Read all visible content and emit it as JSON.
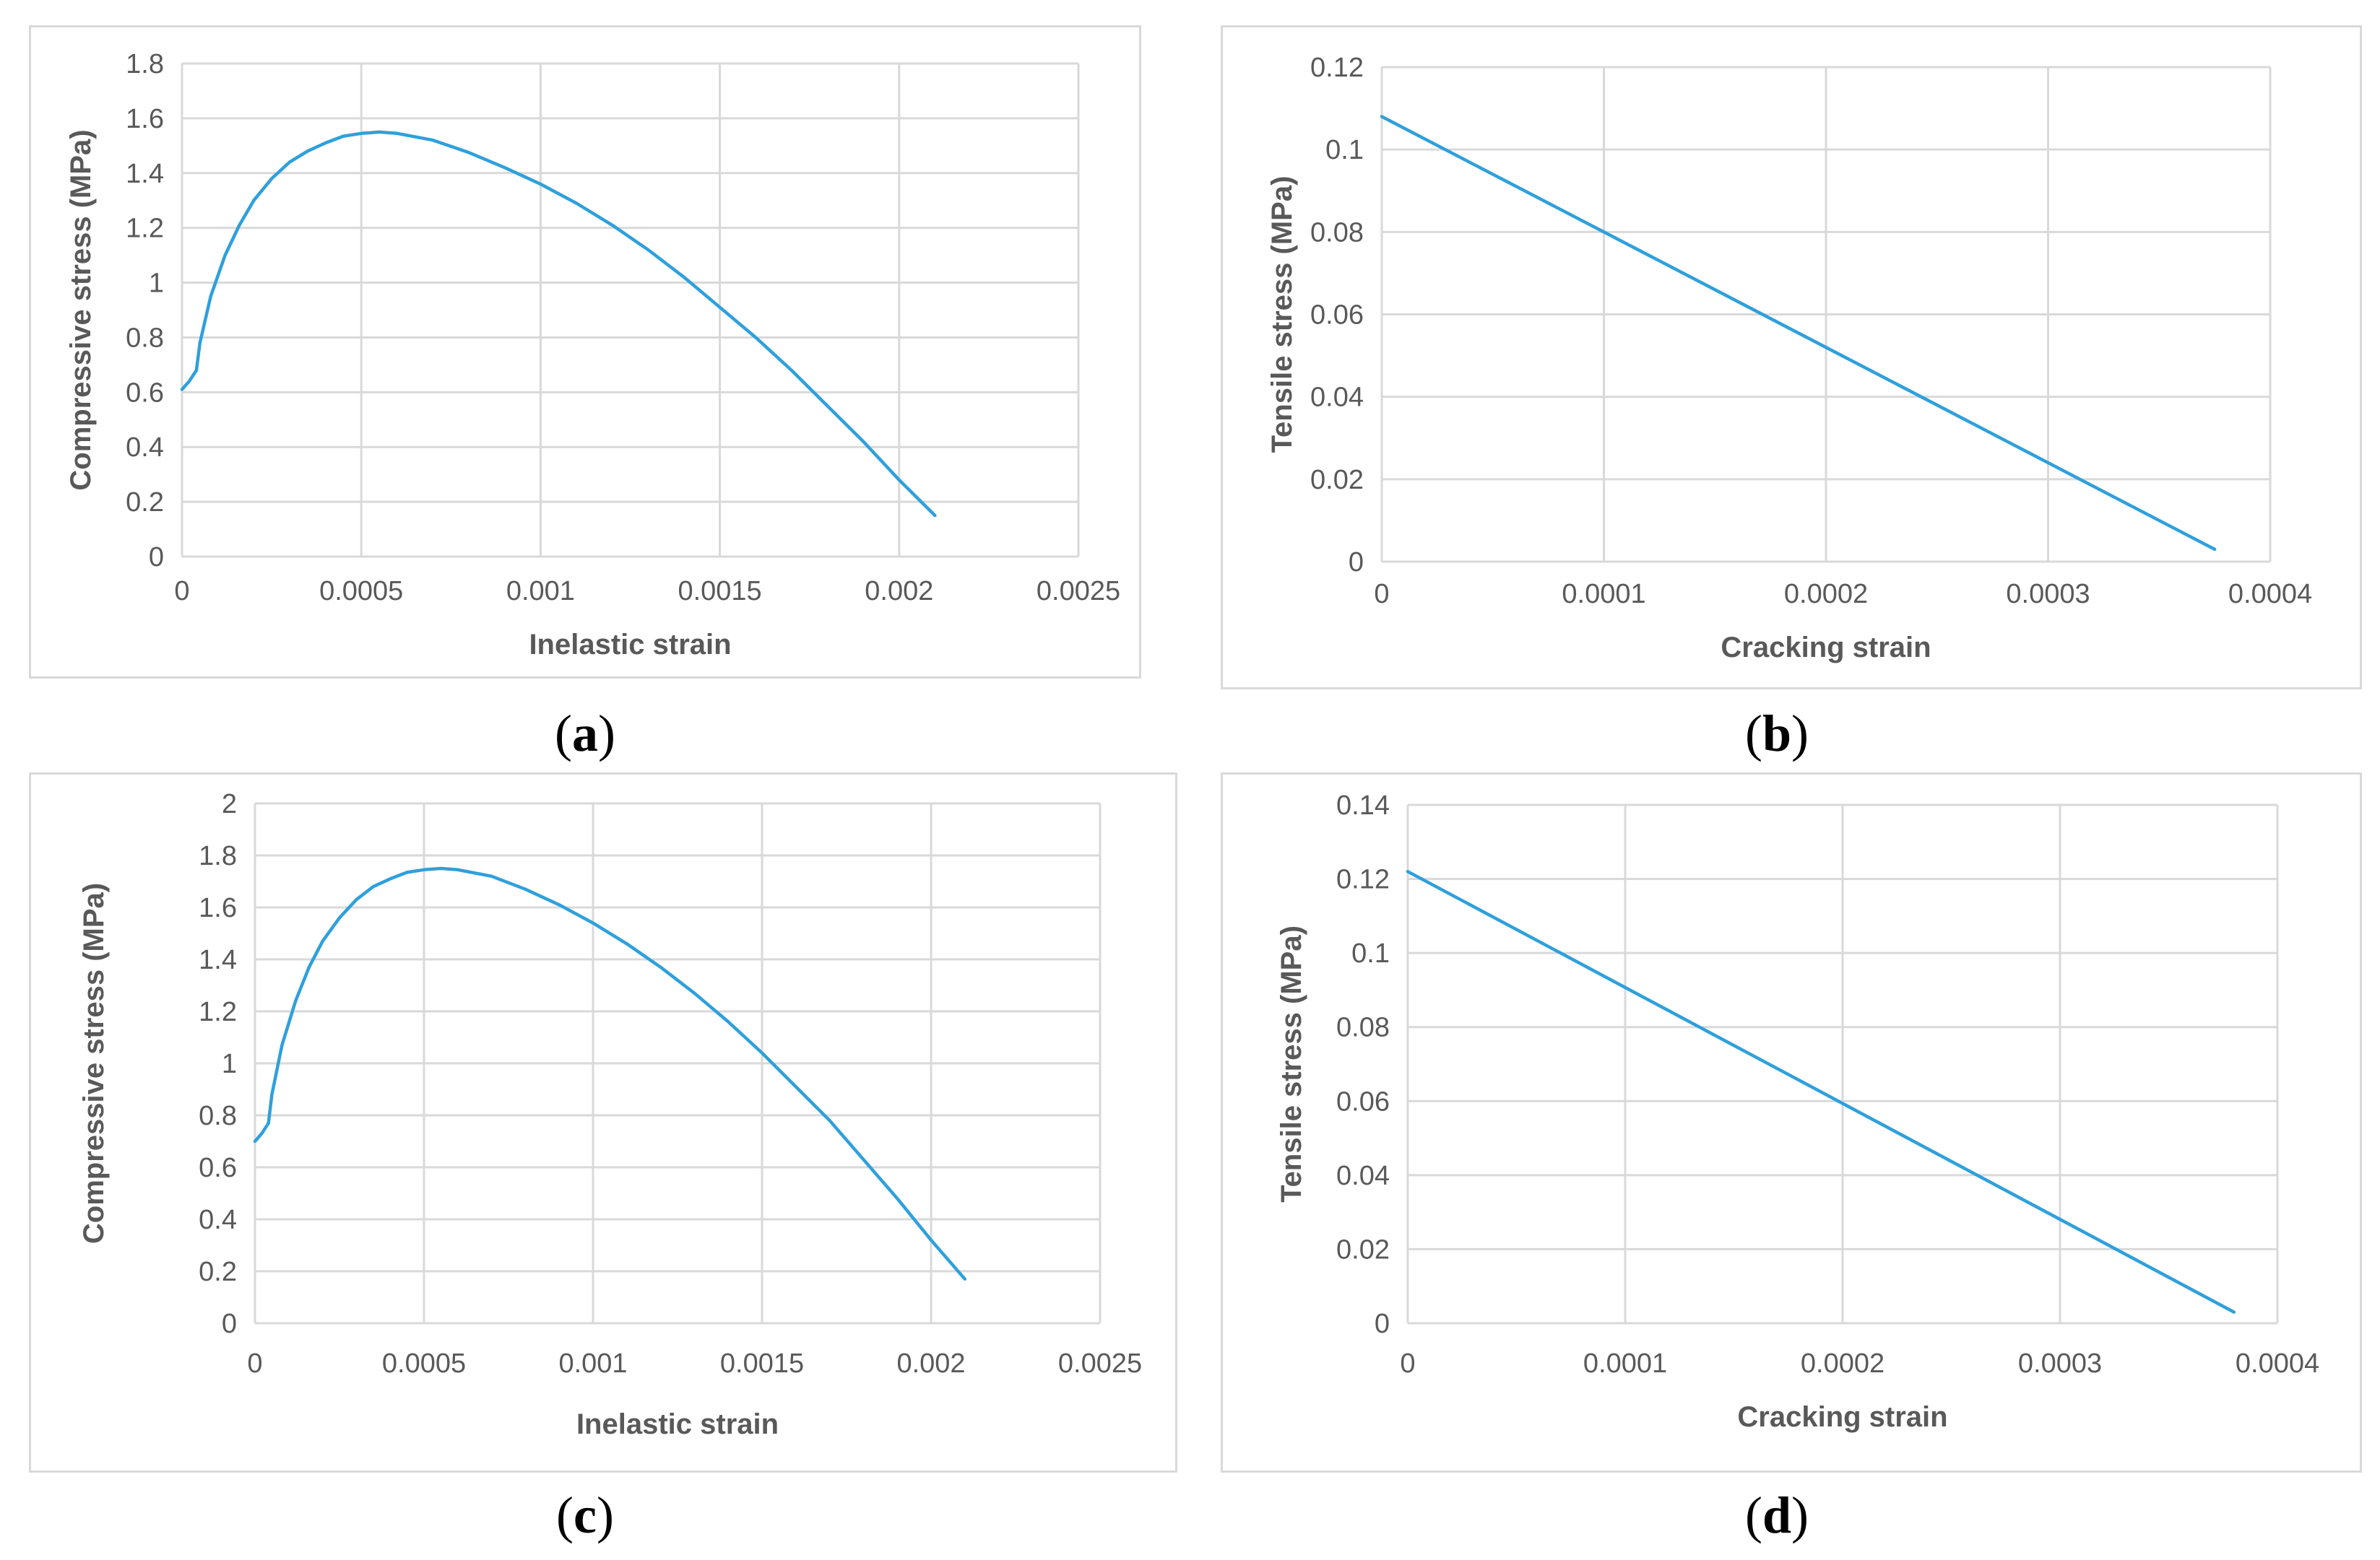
{
  "colors": {
    "series": "#2ea0dc",
    "grid": "#d9d9d9",
    "text": "#595959",
    "border": "#d9d9d9"
  },
  "chart_data": [
    {
      "id": "a",
      "type": "line",
      "caption": "a",
      "xlabel": "Inelastic strain",
      "ylabel": "Compressive stress (MPa)",
      "xlim": [
        0,
        0.0025
      ],
      "ylim": [
        0,
        1.8
      ],
      "xticks": [
        "0",
        "0.0005",
        "0.001",
        "0.0015",
        "0.002",
        "0.0025"
      ],
      "yticks": [
        "0",
        "0.2",
        "0.4",
        "0.6",
        "0.8",
        "1",
        "1.2",
        "1.4",
        "1.6",
        "1.8"
      ],
      "series": [
        {
          "name": "compressive",
          "x": [
            0,
            2e-05,
            4e-05,
            5e-05,
            8e-05,
            0.00012,
            0.00016,
            0.0002,
            0.00025,
            0.0003,
            0.00035,
            0.0004,
            0.00045,
            0.0005,
            0.00055,
            0.0006,
            0.0007,
            0.0008,
            0.0009,
            0.001,
            0.0011,
            0.0012,
            0.0013,
            0.0014,
            0.0015,
            0.0016,
            0.0017,
            0.0018,
            0.0019,
            0.002,
            0.0021
          ],
          "y": [
            0.61,
            0.64,
            0.68,
            0.78,
            0.95,
            1.1,
            1.21,
            1.3,
            1.38,
            1.44,
            1.48,
            1.51,
            1.535,
            1.545,
            1.55,
            1.545,
            1.52,
            1.475,
            1.42,
            1.36,
            1.29,
            1.21,
            1.12,
            1.02,
            0.91,
            0.8,
            0.68,
            0.55,
            0.42,
            0.28,
            0.15
          ]
        }
      ]
    },
    {
      "id": "b",
      "type": "line",
      "caption": "b",
      "xlabel": "Cracking strain",
      "ylabel": "Tensile stress (MPa)",
      "xlim": [
        0,
        0.0004
      ],
      "ylim": [
        0,
        0.12
      ],
      "xticks": [
        "0",
        "0.0001",
        "0.0002",
        "0.0003",
        "0.0004"
      ],
      "yticks": [
        "0",
        "0.02",
        "0.04",
        "0.06",
        "0.08",
        "0.1",
        "0.12"
      ],
      "series": [
        {
          "name": "tensile",
          "x": [
            0,
            0.000375
          ],
          "y": [
            0.108,
            0.003
          ]
        }
      ]
    },
    {
      "id": "c",
      "type": "line",
      "caption": "c",
      "xlabel": "Inelastic strain",
      "ylabel": "Compressive stress (MPa)",
      "xlim": [
        0,
        0.0025
      ],
      "ylim": [
        0,
        2
      ],
      "xticks": [
        "0",
        "0.0005",
        "0.001",
        "0.0015",
        "0.002",
        "0.0025"
      ],
      "yticks": [
        "0",
        "0.2",
        "0.4",
        "0.6",
        "0.8",
        "1",
        "1.2",
        "1.4",
        "1.6",
        "1.8",
        "2"
      ],
      "series": [
        {
          "name": "compressive",
          "x": [
            0,
            2e-05,
            4e-05,
            5e-05,
            8e-05,
            0.00012,
            0.00016,
            0.0002,
            0.00025,
            0.0003,
            0.00035,
            0.0004,
            0.00045,
            0.0005,
            0.00055,
            0.0006,
            0.0007,
            0.0008,
            0.0009,
            0.001,
            0.0011,
            0.0012,
            0.0013,
            0.0014,
            0.0015,
            0.0016,
            0.0017,
            0.0018,
            0.0019,
            0.002,
            0.0021
          ],
          "y": [
            0.7,
            0.73,
            0.77,
            0.88,
            1.07,
            1.24,
            1.37,
            1.47,
            1.56,
            1.63,
            1.68,
            1.71,
            1.735,
            1.745,
            1.75,
            1.745,
            1.72,
            1.67,
            1.61,
            1.54,
            1.46,
            1.37,
            1.27,
            1.16,
            1.04,
            0.91,
            0.78,
            0.63,
            0.48,
            0.32,
            0.17
          ]
        }
      ]
    },
    {
      "id": "d",
      "type": "line",
      "caption": "d",
      "xlabel": "Cracking strain",
      "ylabel": "Tensile stress (MPa)",
      "xlim": [
        0,
        0.0004
      ],
      "ylim": [
        0,
        0.14
      ],
      "xticks": [
        "0",
        "0.0001",
        "0.0002",
        "0.0003",
        "0.0004"
      ],
      "yticks": [
        "0",
        "0.02",
        "0.04",
        "0.06",
        "0.08",
        "0.1",
        "0.12",
        "0.14"
      ],
      "series": [
        {
          "name": "tensile",
          "x": [
            0,
            0.00038
          ],
          "y": [
            0.122,
            0.003
          ]
        }
      ]
    }
  ]
}
